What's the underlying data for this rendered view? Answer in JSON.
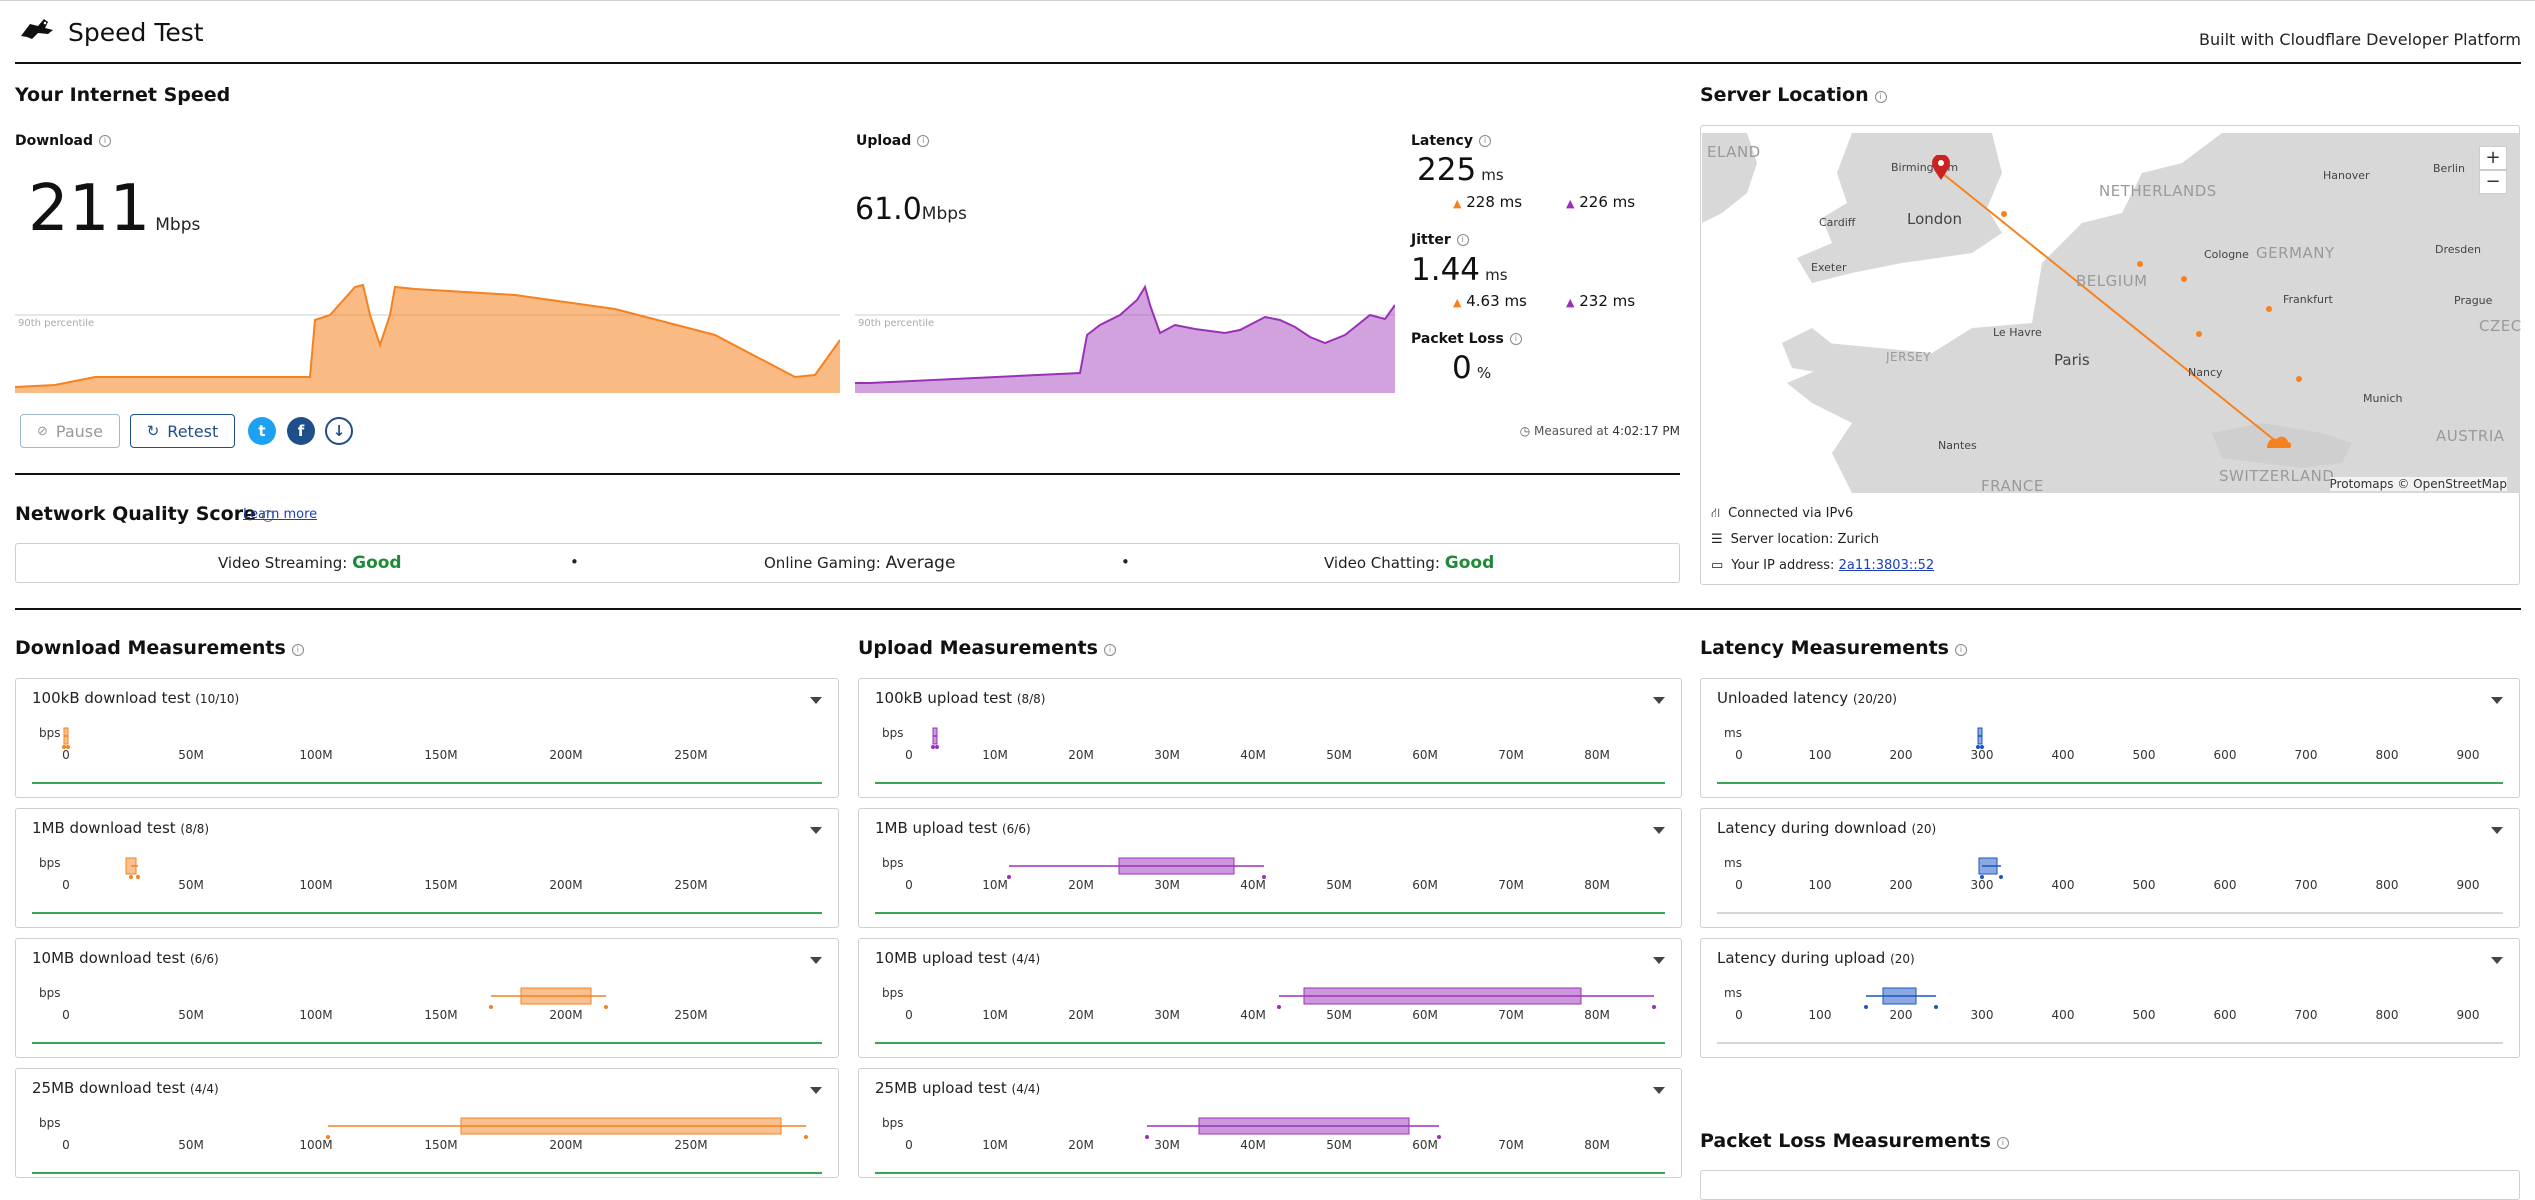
{
  "app": {
    "title": "Speed Test",
    "built_with": "Built with Cloudflare Developer Platform"
  },
  "speed": {
    "section_title": "Your Internet Speed",
    "download": {
      "label": "Download",
      "value": "211",
      "unit": "Mbps",
      "percentile": "90th percentile"
    },
    "upload": {
      "label": "Upload",
      "value": "61.0",
      "unit": "Mbps",
      "percentile": "90th percentile"
    },
    "latency": {
      "label": "Latency",
      "value": "225",
      "unit": "ms",
      "down": "228",
      "up": "226",
      "sub_unit": "ms"
    },
    "jitter": {
      "label": "Jitter",
      "value": "1.44",
      "unit": "ms",
      "down": "4.63",
      "up": "232",
      "sub_unit": "ms"
    },
    "packet_loss": {
      "label": "Packet Loss",
      "value": "0",
      "unit": "%"
    },
    "buttons": {
      "pause": "Pause",
      "retest": "Retest"
    },
    "measured_at_label": "Measured at",
    "measured_at": "4:02:17 PM"
  },
  "network_quality": {
    "title": "Network Quality Score",
    "learn_more": "Learn more",
    "items": [
      {
        "label": "Video Streaming:",
        "value": "Good"
      },
      {
        "label": "Online Gaming:",
        "value": "Average"
      },
      {
        "label": "Video Chatting:",
        "value": "Good"
      }
    ],
    "separator": "•"
  },
  "server": {
    "title": "Server Location",
    "attribution": "Protomaps © OpenStreetMap",
    "connected": "Connected via IPv6",
    "location": "Server location: Zurich",
    "ip_label": "Your IP address:",
    "ip": "2a11:3803::52",
    "zoom_in": "+",
    "zoom_out": "−",
    "cities": [
      "Birmingham",
      "London",
      "Cardiff",
      "Exeter",
      "Hanover",
      "Berlin",
      "Cologne",
      "Dresden",
      "Frankfurt",
      "Prague",
      "Le Havre",
      "Paris",
      "Nancy",
      "Munich",
      "Nantes"
    ],
    "countries": [
      "ELAND",
      "NETHERLANDS",
      "GERMANY",
      "BELGIUM",
      "CZEC",
      "JERSEY",
      "FRANCE",
      "SWITZERLAND",
      "AUSTRIA"
    ]
  },
  "download_measurements": {
    "title": "Download Measurements",
    "axis_unit": "bps",
    "ticks": [
      "0",
      "50M",
      "100M",
      "150M",
      "200M",
      "250M"
    ],
    "tests": [
      {
        "name": "100kB download test",
        "count": "(10/10)"
      },
      {
        "name": "1MB download test",
        "count": "(8/8)"
      },
      {
        "name": "10MB download test",
        "count": "(6/6)"
      },
      {
        "name": "25MB download test",
        "count": "(4/4)"
      }
    ]
  },
  "upload_measurements": {
    "title": "Upload Measurements",
    "axis_unit": "bps",
    "ticks": [
      "0",
      "10M",
      "20M",
      "30M",
      "40M",
      "50M",
      "60M",
      "70M",
      "80M"
    ],
    "tests": [
      {
        "name": "100kB upload test",
        "count": "(8/8)"
      },
      {
        "name": "1MB upload test",
        "count": "(6/6)"
      },
      {
        "name": "10MB upload test",
        "count": "(4/4)"
      },
      {
        "name": "25MB upload test",
        "count": "(4/4)"
      }
    ]
  },
  "latency_measurements": {
    "title": "Latency Measurements",
    "axis_unit": "ms",
    "ticks": [
      "0",
      "100",
      "200",
      "300",
      "400",
      "500",
      "600",
      "700",
      "800",
      "900"
    ],
    "tests": [
      {
        "name": "Unloaded latency",
        "count": "(20/20)"
      },
      {
        "name": "Latency during download",
        "count": "(20)"
      },
      {
        "name": "Latency during upload",
        "count": "(20)"
      }
    ]
  },
  "packet_loss_measurements": {
    "title": "Packet Loss Measurements"
  },
  "colors": {
    "download": "#f6821f",
    "upload": "#9b30b8",
    "latency": "#1a56c4",
    "good": "#1f8a3a"
  }
}
